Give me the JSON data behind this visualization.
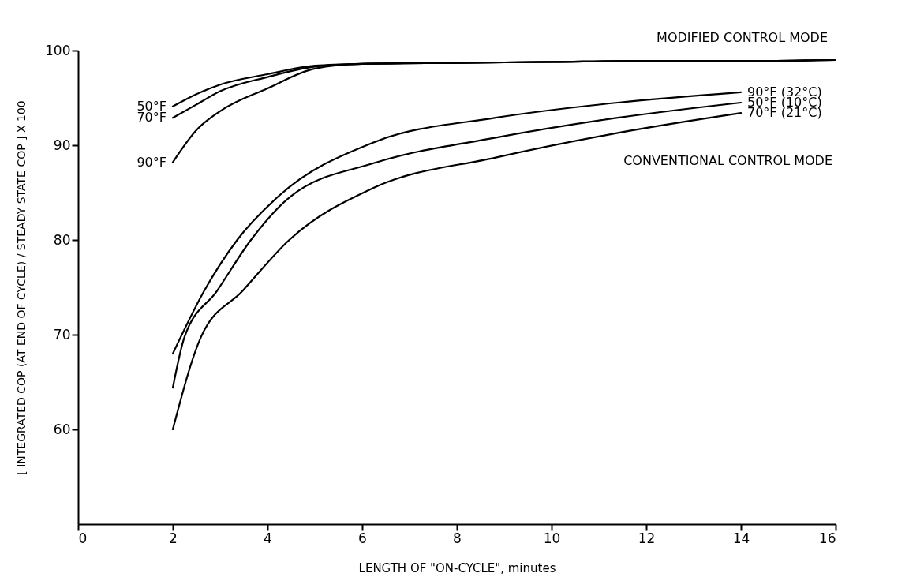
{
  "chart_data": {
    "type": "line",
    "xlabel": "LENGTH OF \"ON-CYCLE\", minutes",
    "ylabel": "[ INTEGRATED COP (AT END OF CYCLE) / STEADY STATE COP ] X 100",
    "xlim": [
      0,
      16
    ],
    "xticks": [
      0,
      2,
      4,
      6,
      8,
      10,
      12,
      14,
      16
    ],
    "ylim": [
      50,
      100
    ],
    "yticks": [
      60,
      70,
      80,
      90,
      100
    ],
    "grid": false,
    "legend": false,
    "marker": "none",
    "line_style": "solid",
    "annotations": [
      "MODIFIED CONTROL MODE",
      "CONVENTIONAL CONTROL MODE"
    ],
    "series": [
      {
        "name": "50°F",
        "color": "#000000",
        "x": [
          2,
          2.5,
          3,
          4,
          5,
          6,
          8,
          10,
          12,
          14,
          16
        ],
        "values": [
          94.1,
          95.4,
          96.4,
          97.5,
          98.4,
          98.6,
          98.7,
          98.8,
          98.9,
          98.9,
          99.0
        ]
      },
      {
        "name": "70°F",
        "color": "#000000",
        "x": [
          2,
          2.5,
          3,
          4,
          5,
          6,
          8,
          10,
          12,
          14,
          16
        ],
        "values": [
          92.9,
          94.3,
          95.7,
          97.2,
          98.3,
          98.6,
          98.7,
          98.8,
          98.9,
          98.9,
          99.0
        ]
      },
      {
        "name": "90°F",
        "color": "#000000",
        "x": [
          2,
          2.5,
          3,
          4,
          5,
          6,
          8,
          10,
          12,
          14,
          16
        ],
        "values": [
          88.2,
          91.6,
          93.6,
          96.0,
          98.1,
          98.6,
          98.7,
          98.8,
          98.9,
          98.9,
          99.0
        ]
      },
      {
        "name": "90°F (32°C)",
        "color": "#000000",
        "x": [
          2,
          2.66,
          3.36,
          4.23,
          6.24,
          8.82,
          11.4,
          14
        ],
        "values": [
          68.0,
          74.6,
          80.0,
          84.6,
          90.3,
          92.9,
          94.5,
          95.6
        ]
      },
      {
        "name": "50°F (10°C)",
        "color": "#000000",
        "x": [
          2,
          2.25,
          2.93,
          3.65,
          4.49,
          6.24,
          8.82,
          11.4,
          14
        ],
        "values": [
          64.4,
          69.8,
          74.6,
          80.0,
          84.6,
          88.1,
          90.8,
          92.9,
          94.5
        ]
      },
      {
        "name": "70°F (21°C)",
        "color": "#000000",
        "x": [
          2,
          2.6,
          3.47,
          4.46,
          6.24,
          8.82,
          11.4,
          14
        ],
        "values": [
          60.0,
          69.8,
          74.6,
          80.0,
          85.5,
          88.7,
          91.3,
          93.4
        ]
      }
    ]
  }
}
